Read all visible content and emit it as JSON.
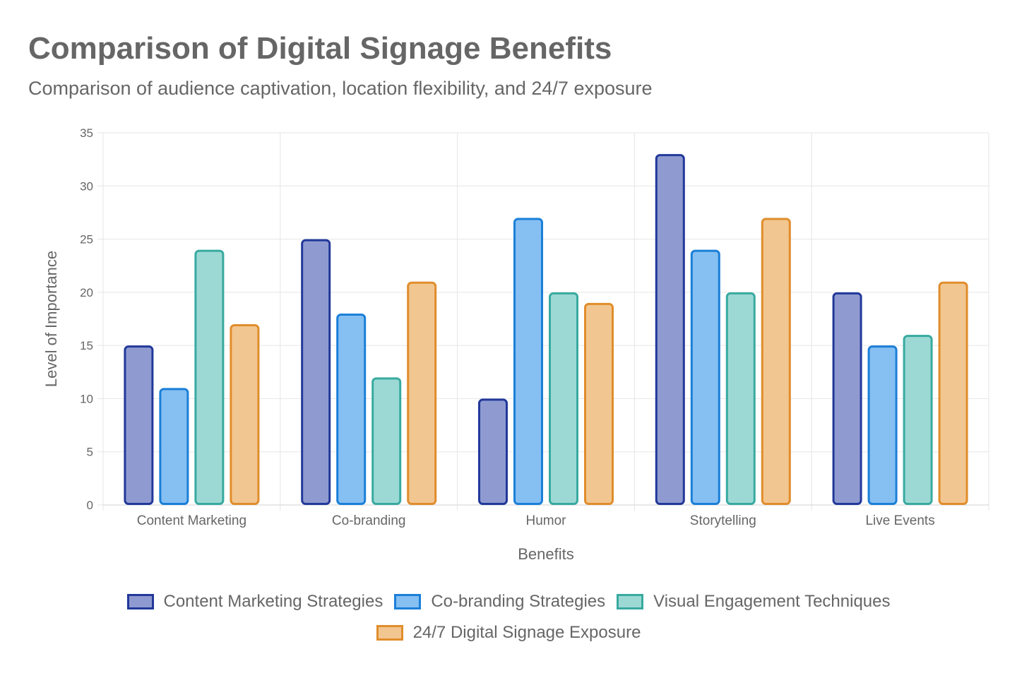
{
  "header": {
    "title": "Comparison of Digital Signage Benefits",
    "subtitle": "Comparison of audience captivation, location flexibility, and 24/7 exposure"
  },
  "chart_data": {
    "type": "bar",
    "title": "Comparison of Digital Signage Benefits",
    "subtitle": "Comparison of audience captivation, location flexibility, and 24/7 exposure",
    "xlabel": "Benefits",
    "ylabel": "Level of Importance",
    "ylim": [
      0,
      35
    ],
    "yticks": [
      0,
      5,
      10,
      15,
      20,
      25,
      30,
      35
    ],
    "grid": true,
    "legend_position": "bottom",
    "categories": [
      "Content Marketing",
      "Co-branding",
      "Humor",
      "Storytelling",
      "Live Events"
    ],
    "series": [
      {
        "name": "Content Marketing Strategies",
        "values": [
          15,
          25,
          10,
          33,
          20
        ],
        "fill": "#8f9bd0",
        "stroke": "#22389a"
      },
      {
        "name": "Co-branding Strategies",
        "values": [
          11,
          18,
          27,
          24,
          15
        ],
        "fill": "#86bff2",
        "stroke": "#1a7fd8"
      },
      {
        "name": "Visual Engagement Techniques",
        "values": [
          24,
          12,
          20,
          20,
          16
        ],
        "fill": "#9dd9d4",
        "stroke": "#38aaa0"
      },
      {
        "name": "24/7 Digital Signage Exposure",
        "values": [
          17,
          21,
          19,
          27,
          21
        ],
        "fill": "#f2c690",
        "stroke": "#e08d2c"
      }
    ]
  }
}
